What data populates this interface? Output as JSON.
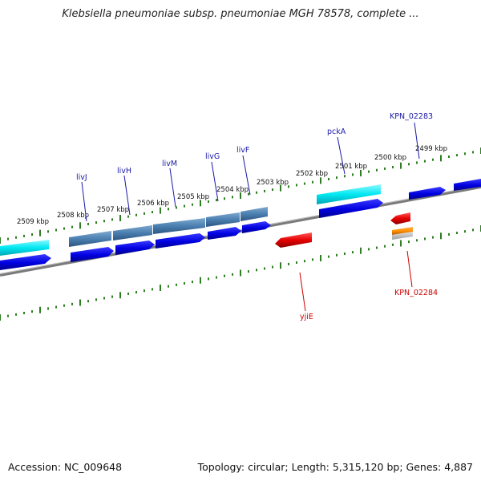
{
  "title": "Klebsiella pneumoniae subsp. pneumoniae MGH 78578, complete ...",
  "footer": {
    "accession": "Accession: NC_009648",
    "topology": "Topology: circular; Length: 5,315,120 bp; Genes: 4,887"
  },
  "colors": {
    "label_forward": "#1a1aa8",
    "label_reverse": "#cc0000",
    "tick": "#2e7d22",
    "backbone": "#7a7a7a",
    "cds_forward": "#0000e6",
    "gene_forward": "#00e5f0",
    "operon": "#4a7fb0",
    "cds_reverse": "#e60000",
    "rna_reverse": "#ff8c00"
  },
  "kbp_labels": [
    "2499 kbp",
    "2500 kbp",
    "2501 kbp",
    "2502 kbp",
    "2503 kbp",
    "2504 kbp",
    "2505 kbp",
    "2506 kbp",
    "2507 kbp",
    "2508 kbp",
    "2509 kbp"
  ],
  "gene_labels": {
    "forward": [
      "KPN_02283",
      "pckA",
      "livF",
      "livG",
      "livM",
      "livH",
      "livJ"
    ],
    "reverse": [
      "yjiE",
      "KPN_02284"
    ]
  }
}
